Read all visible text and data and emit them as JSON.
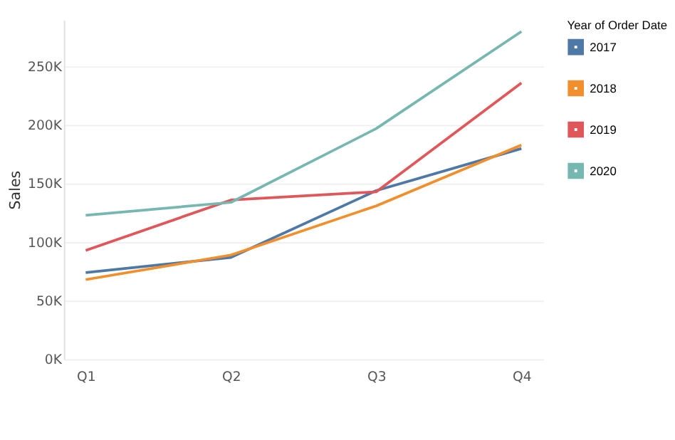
{
  "chart_data": {
    "type": "line",
    "ylabel": "Sales",
    "legend_title": "Year of Order Date",
    "legend": "top right",
    "grid": "y",
    "categories": [
      "Q1",
      "Q2",
      "Q3",
      "Q4"
    ],
    "ylim": [
      0,
      290000
    ],
    "yticks": [
      {
        "value": 0,
        "label": "0K"
      },
      {
        "value": 50000,
        "label": "50K"
      },
      {
        "value": 100000,
        "label": "100K"
      },
      {
        "value": 150000,
        "label": "150K"
      },
      {
        "value": 200000,
        "label": "200K"
      },
      {
        "value": 250000,
        "label": "250K"
      }
    ],
    "series": [
      {
        "name": "2017",
        "color": "#4e79a7",
        "values": [
          74000,
          87000,
          144000,
          180000
        ]
      },
      {
        "name": "2018",
        "color": "#f28e2b",
        "values": [
          68000,
          89000,
          131000,
          183000
        ]
      },
      {
        "name": "2019",
        "color": "#e15759",
        "values": [
          93000,
          136000,
          143000,
          236000
        ]
      },
      {
        "name": "2020",
        "color": "#76b7b2",
        "values": [
          123000,
          134000,
          197000,
          280000
        ]
      }
    ]
  }
}
